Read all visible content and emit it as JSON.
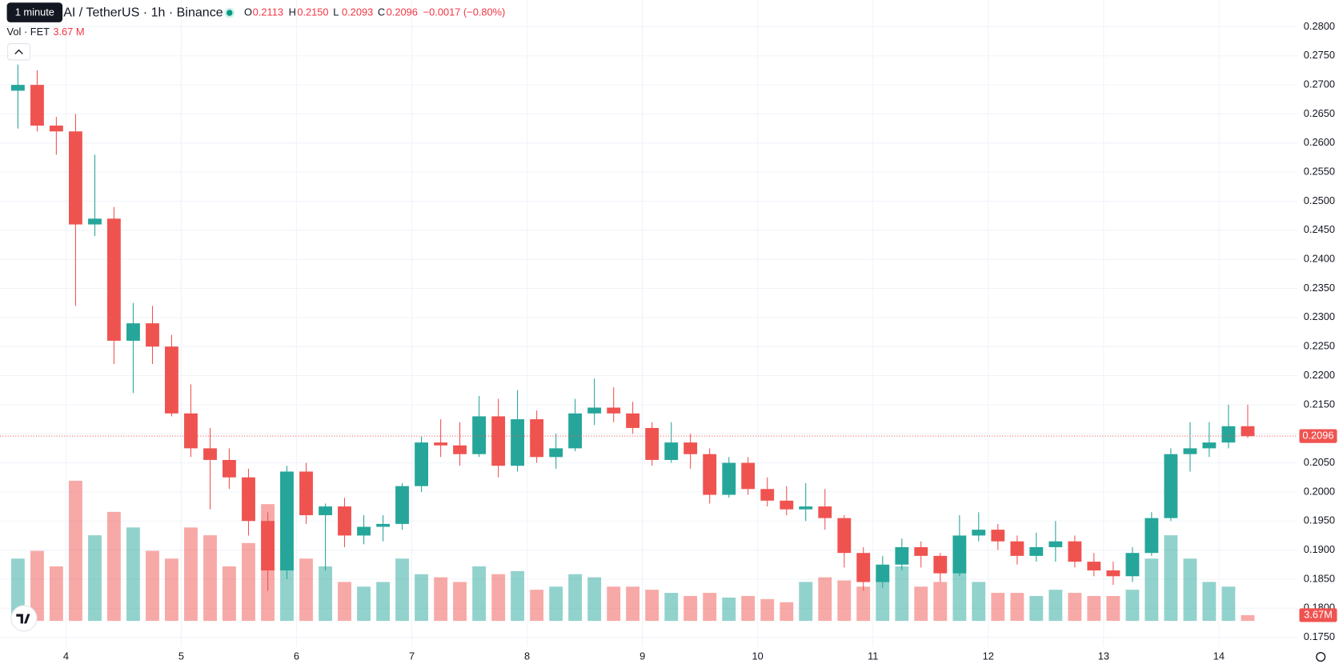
{
  "header": {
    "tooltip": "1 minute",
    "symbol": "AI / TetherUS · 1h · Binance",
    "ohlc": [
      {
        "label": "O",
        "value": "0.2113"
      },
      {
        "label": "H",
        "value": "0.2150"
      },
      {
        "label": "L",
        "value": "0.2093"
      },
      {
        "label": "C",
        "value": "0.2096"
      }
    ],
    "change": "−0.0017 (−0.80%)",
    "volume_label": "Vol · FET",
    "volume_value": "3.67 M"
  },
  "chart_data": {
    "type": "candlestick",
    "x": [
      3.5,
      3.667,
      3.833,
      4,
      4.167,
      4.333,
      4.5,
      4.667,
      4.833,
      5,
      5.167,
      5.333,
      5.5,
      5.667,
      5.833,
      6,
      6.167,
      6.333,
      6.5,
      6.667,
      6.833,
      7,
      7.167,
      7.333,
      7.5,
      7.667,
      7.833,
      8,
      8.167,
      8.333,
      8.5,
      8.667,
      8.833,
      9,
      9.167,
      9.333,
      9.5,
      9.667,
      9.833,
      10,
      10.167,
      10.333,
      10.5,
      10.667,
      10.833,
      11,
      11.167,
      11.333,
      11.5,
      11.667,
      11.833,
      12,
      12.167,
      12.333,
      12.5,
      12.667,
      12.833,
      13,
      13.167,
      13.333,
      13.5,
      13.667,
      13.833,
      14,
      14.167
    ],
    "open": [
      0.269,
      0.27,
      0.263,
      0.262,
      0.246,
      0.247,
      0.226,
      0.229,
      0.225,
      0.2135,
      0.2075,
      0.2055,
      0.2025,
      0.195,
      0.1865,
      0.2035,
      0.196,
      0.1975,
      0.1925,
      0.194,
      0.1945,
      0.201,
      0.2085,
      0.208,
      0.2065,
      0.213,
      0.2045,
      0.2125,
      0.206,
      0.2075,
      0.2135,
      0.2145,
      0.2135,
      0.211,
      0.2055,
      0.2085,
      0.2065,
      0.1995,
      0.205,
      0.2005,
      0.1985,
      0.197,
      0.1975,
      0.1955,
      0.1895,
      0.1845,
      0.1875,
      0.1905,
      0.189,
      0.186,
      0.1925,
      0.1935,
      0.1915,
      0.189,
      0.1905,
      0.1915,
      0.188,
      0.1865,
      0.1855,
      0.1895,
      0.1955,
      0.2065,
      0.2075,
      0.2085,
      0.2113
    ],
    "high": [
      0.2735,
      0.2725,
      0.2645,
      0.265,
      0.258,
      0.249,
      0.2325,
      0.232,
      0.227,
      0.2185,
      0.211,
      0.2075,
      0.204,
      0.1965,
      0.2045,
      0.205,
      0.198,
      0.199,
      0.196,
      0.196,
      0.2015,
      0.2095,
      0.2125,
      0.212,
      0.2165,
      0.216,
      0.2175,
      0.214,
      0.21,
      0.216,
      0.2195,
      0.218,
      0.2155,
      0.212,
      0.212,
      0.21,
      0.2075,
      0.206,
      0.206,
      0.2025,
      0.201,
      0.2015,
      0.2005,
      0.196,
      0.1905,
      0.189,
      0.192,
      0.1915,
      0.1895,
      0.196,
      0.1965,
      0.1945,
      0.1925,
      0.193,
      0.195,
      0.1925,
      0.1895,
      0.188,
      0.1905,
      0.1965,
      0.2075,
      0.212,
      0.212,
      0.215,
      0.215
    ],
    "low": [
      0.2625,
      0.262,
      0.258,
      0.232,
      0.244,
      0.222,
      0.217,
      0.222,
      0.213,
      0.206,
      0.197,
      0.2005,
      0.1925,
      0.183,
      0.185,
      0.1945,
      0.1865,
      0.1905,
      0.191,
      0.1915,
      0.1935,
      0.2,
      0.206,
      0.2045,
      0.206,
      0.2025,
      0.2035,
      0.205,
      0.204,
      0.207,
      0.2115,
      0.212,
      0.21,
      0.2045,
      0.205,
      0.204,
      0.198,
      0.199,
      0.1995,
      0.1975,
      0.196,
      0.195,
      0.1935,
      0.187,
      0.183,
      0.1835,
      0.1865,
      0.187,
      0.1845,
      0.1855,
      0.1915,
      0.19,
      0.1875,
      0.188,
      0.188,
      0.187,
      0.1855,
      0.184,
      0.1845,
      0.189,
      0.195,
      0.2035,
      0.206,
      0.2075,
      0.2093
    ],
    "close": [
      0.27,
      0.263,
      0.262,
      0.246,
      0.247,
      0.226,
      0.229,
      0.225,
      0.2135,
      0.2075,
      0.2055,
      0.2025,
      0.195,
      0.1865,
      0.2035,
      0.196,
      0.1975,
      0.1925,
      0.194,
      0.1945,
      0.201,
      0.2085,
      0.208,
      0.2065,
      0.213,
      0.2045,
      0.2125,
      0.206,
      0.2075,
      0.2135,
      0.2145,
      0.2135,
      0.211,
      0.2055,
      0.2085,
      0.2065,
      0.1995,
      0.205,
      0.2005,
      0.1985,
      0.197,
      0.1975,
      0.1955,
      0.1895,
      0.1845,
      0.1875,
      0.1905,
      0.189,
      0.186,
      0.1925,
      0.1935,
      0.1915,
      0.189,
      0.1905,
      0.1915,
      0.188,
      0.1865,
      0.1855,
      0.1895,
      0.1955,
      0.2065,
      0.2075,
      0.2085,
      0.2113,
      0.2096
    ],
    "volume": [
      40,
      45,
      35,
      90,
      55,
      70,
      60,
      45,
      40,
      60,
      55,
      35,
      50,
      75,
      45,
      40,
      35,
      25,
      22,
      25,
      40,
      30,
      28,
      25,
      35,
      30,
      32,
      20,
      22,
      30,
      28,
      22,
      22,
      20,
      18,
      16,
      18,
      15,
      16,
      14,
      12,
      25,
      28,
      26,
      22,
      30,
      35,
      22,
      25,
      38,
      25,
      18,
      18,
      16,
      20,
      18,
      16,
      16,
      20,
      40,
      55,
      40,
      25,
      22,
      3.67
    ],
    "up_color": "#26a69a",
    "down_color": "#ef5350",
    "vol_ylim": [
      0,
      110
    ],
    "xlim": [
      3.428,
      14.683
    ],
    "xticks": [
      4,
      5,
      6,
      7,
      8,
      9,
      10,
      11,
      12,
      13,
      14
    ],
    "ylim": [
      0.1734,
      0.2846
    ],
    "yticks": [
      {
        "value": 0.28,
        "label": "0.2800"
      },
      {
        "value": 0.275,
        "label": "0.2750"
      },
      {
        "value": 0.27,
        "label": "0.2700"
      },
      {
        "value": 0.265,
        "label": "0.2650"
      },
      {
        "value": 0.26,
        "label": "0.2600"
      },
      {
        "value": 0.255,
        "label": "0.2550"
      },
      {
        "value": 0.25,
        "label": "0.2500"
      },
      {
        "value": 0.245,
        "label": "0.2450"
      },
      {
        "value": 0.24,
        "label": "0.2400"
      },
      {
        "value": 0.235,
        "label": "0.2350"
      },
      {
        "value": 0.23,
        "label": "0.2300"
      },
      {
        "value": 0.225,
        "label": "0.2250"
      },
      {
        "value": 0.22,
        "label": "0.2200"
      },
      {
        "value": 0.215,
        "label": "0.2150"
      },
      {
        "value": 0.21,
        "label": "0.2100"
      },
      {
        "value": 0.205,
        "label": "0.2050"
      },
      {
        "value": 0.2,
        "label": "0.2000"
      },
      {
        "value": 0.195,
        "label": "0.1950"
      },
      {
        "value": 0.19,
        "label": "0.1900"
      },
      {
        "value": 0.185,
        "label": "0.1850"
      },
      {
        "value": 0.18,
        "label": "0.1800"
      },
      {
        "value": 0.175,
        "label": "0.1750"
      }
    ],
    "grid": true,
    "last_price": {
      "value": 0.2096,
      "label": "0.2096"
    },
    "volume_tag": "3.67M"
  }
}
